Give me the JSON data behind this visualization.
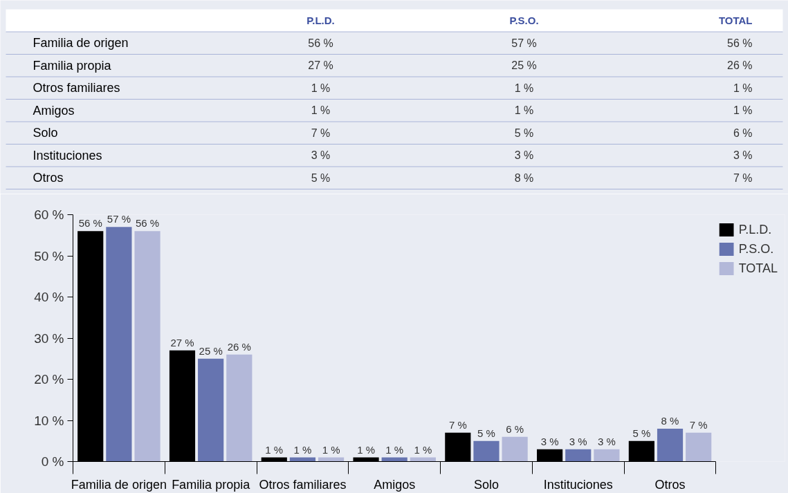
{
  "chart_data": {
    "type": "bar",
    "categories": [
      "Familia de origen",
      "Familia propia",
      "Otros familiares",
      "Amigos",
      "Solo",
      "Instituciones",
      "Otros"
    ],
    "series": [
      {
        "name": "P.L.D.",
        "color": "#000000",
        "values": [
          56,
          27,
          1,
          1,
          7,
          3,
          5
        ],
        "value_labels": [
          "56 %",
          "27 %",
          "1 %",
          "1 %",
          "7 %",
          "3 %",
          "5 %"
        ]
      },
      {
        "name": "P.S.O.",
        "color": "#6674b0",
        "values": [
          57,
          25,
          1,
          1,
          5,
          3,
          8
        ],
        "value_labels": [
          "57 %",
          "25 %",
          "1 %",
          "1 %",
          "5 %",
          "3 %",
          "8 %"
        ]
      },
      {
        "name": "TOTAL",
        "color": "#b3b8d9",
        "values": [
          56,
          26,
          1,
          1,
          6,
          3,
          7
        ],
        "value_labels": [
          "56 %",
          "26 %",
          "1 %",
          "1 %",
          "6 %",
          "3 %",
          "7 %"
        ]
      }
    ],
    "ylim": [
      0,
      60
    ],
    "yticks": [
      {
        "value": 0,
        "label": "0 %"
      },
      {
        "value": 10,
        "label": "10 %"
      },
      {
        "value": 20,
        "label": "20 %"
      },
      {
        "value": 30,
        "label": "30 %"
      },
      {
        "value": 40,
        "label": "40 %"
      },
      {
        "value": 50,
        "label": "50 %"
      },
      {
        "value": 60,
        "label": "60 %"
      }
    ],
    "grid": false,
    "legend": "top right"
  }
}
